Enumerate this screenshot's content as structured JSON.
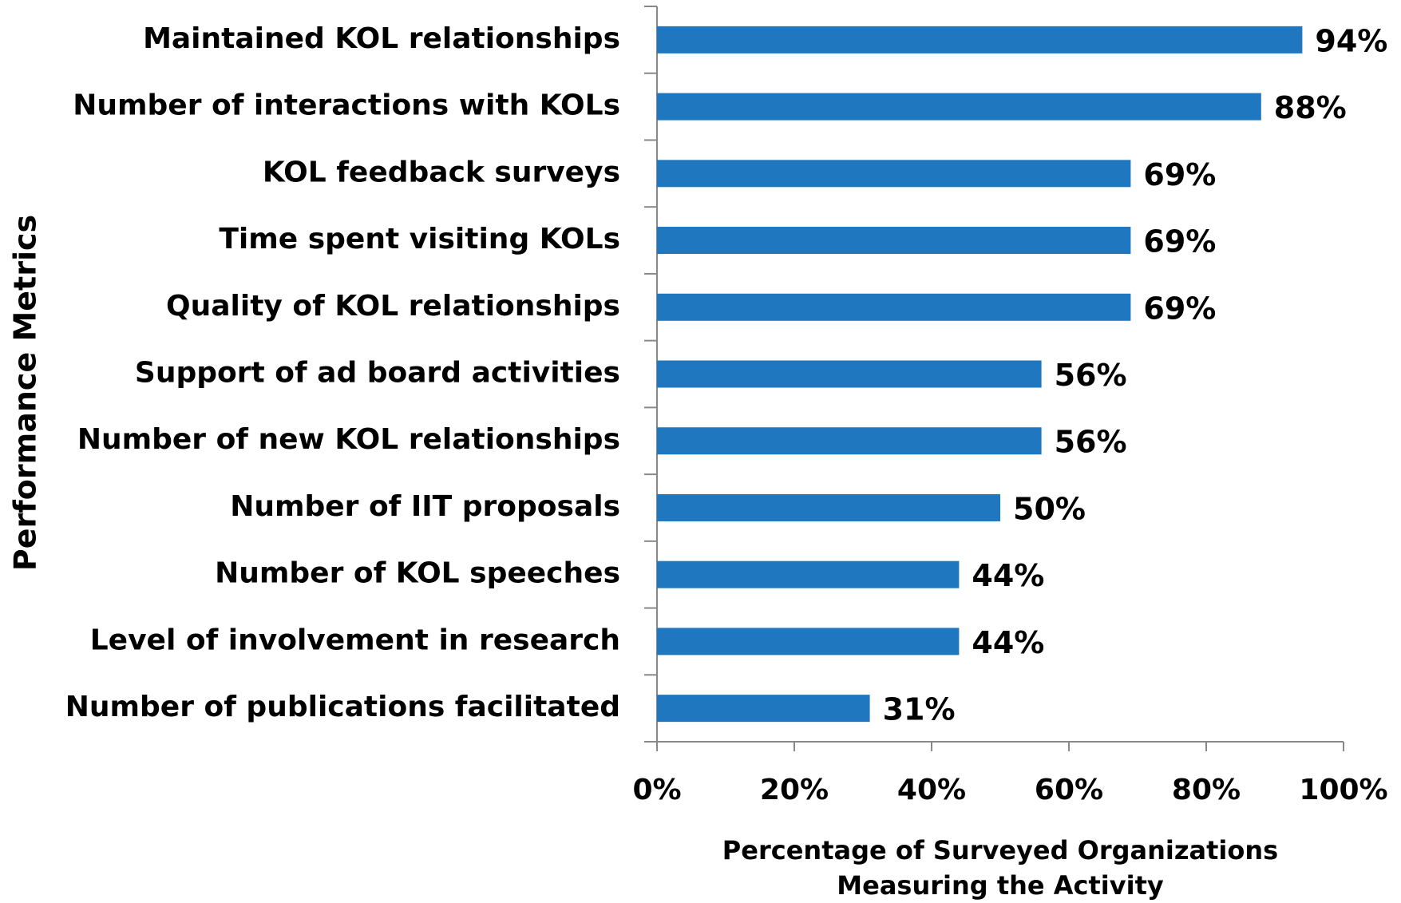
{
  "chart_data": {
    "type": "bar",
    "orientation": "horizontal",
    "categories": [
      "Maintained KOL relationships",
      "Number of interactions with KOLs",
      "KOL feedback surveys",
      "Time spent visiting KOLs",
      "Quality of KOL relationships",
      "Support of ad board activities",
      "Number of new KOL relationships",
      "Number of IIT proposals",
      "Number of KOL speeches",
      "Level of involvement in research",
      "Number of publications facilitated"
    ],
    "values": [
      94,
      88,
      69,
      69,
      69,
      56,
      56,
      50,
      44,
      44,
      31
    ],
    "value_labels": [
      "94%",
      "88%",
      "69%",
      "69%",
      "69%",
      "56%",
      "56%",
      "50%",
      "44%",
      "44%",
      "31%"
    ],
    "color": "#1f77c0",
    "xlim": [
      0,
      100
    ],
    "xticks": [
      {
        "value": 0,
        "label": "0%"
      },
      {
        "value": 20,
        "label": "20%"
      },
      {
        "value": 40,
        "label": "40%"
      },
      {
        "value": 60,
        "label": "60%"
      },
      {
        "value": 80,
        "label": "80%"
      },
      {
        "value": 100,
        "label": "100%"
      }
    ],
    "xlabel": [
      "Percentage of Surveyed Organizations",
      "Measuring the Activity"
    ],
    "ylabel": "Performance Metrics",
    "grid": false
  }
}
